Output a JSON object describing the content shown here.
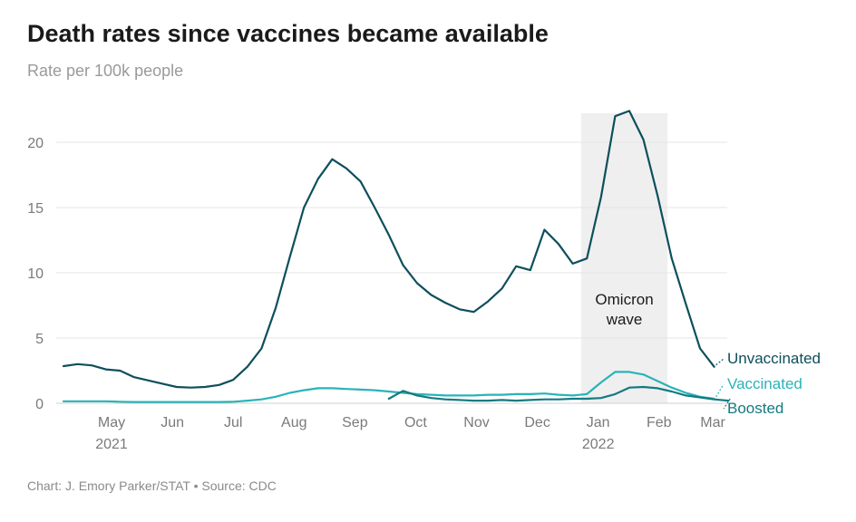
{
  "title": "Death rates since vaccines became available",
  "subtitle": "Rate per 100k people",
  "source": "Chart: J. Emory Parker/STAT • Source: CDC",
  "chart_data": {
    "type": "line",
    "title": "Death rates since vaccines became available",
    "subtitle": "Rate per 100k people",
    "ylim": [
      0,
      22.5
    ],
    "y_ticks": [
      0,
      5,
      10,
      15,
      20
    ],
    "grid": true,
    "x_ticks": [
      {
        "week": 3.4,
        "label": "May",
        "year": "2021"
      },
      {
        "week": 7.7,
        "label": "Jun",
        "year": ""
      },
      {
        "week": 12.0,
        "label": "Jul",
        "year": ""
      },
      {
        "week": 16.3,
        "label": "Aug",
        "year": ""
      },
      {
        "week": 20.6,
        "label": "Sep",
        "year": ""
      },
      {
        "week": 24.9,
        "label": "Oct",
        "year": ""
      },
      {
        "week": 29.2,
        "label": "Nov",
        "year": ""
      },
      {
        "week": 33.5,
        "label": "Dec",
        "year": ""
      },
      {
        "week": 37.8,
        "label": "Jan",
        "year": "2022"
      },
      {
        "week": 42.1,
        "label": "Feb",
        "year": ""
      },
      {
        "week": 45.9,
        "label": "Mar",
        "year": ""
      }
    ],
    "shaded_region": {
      "from_week": 36.6,
      "to_week": 42.7,
      "label_line1": "Omicron",
      "label_line2": "wave"
    },
    "series": [
      {
        "name": "Unvaccinated",
        "color": "#0d4f5c",
        "start_week": 0,
        "values": [
          2.85,
          3.0,
          2.9,
          2.6,
          2.5,
          2.0,
          1.75,
          1.5,
          1.25,
          1.2,
          1.25,
          1.4,
          1.8,
          2.8,
          4.2,
          7.3,
          11.2,
          15.0,
          17.2,
          18.7,
          18.0,
          17.0,
          15.0,
          12.9,
          10.6,
          9.2,
          8.3,
          7.7,
          7.2,
          7.0,
          7.8,
          8.8,
          10.5,
          10.2,
          13.3,
          12.2,
          10.7,
          11.1,
          15.8,
          22.0,
          22.4,
          20.2,
          15.9,
          11.1,
          7.6,
          4.2,
          2.8
        ]
      },
      {
        "name": "Vaccinated",
        "color": "#2ab3b8",
        "start_week": 0,
        "values": [
          0.15,
          0.15,
          0.15,
          0.15,
          0.12,
          0.1,
          0.1,
          0.1,
          0.1,
          0.1,
          0.1,
          0.1,
          0.12,
          0.2,
          0.3,
          0.5,
          0.8,
          1.0,
          1.15,
          1.15,
          1.1,
          1.05,
          1.0,
          0.9,
          0.8,
          0.7,
          0.65,
          0.6,
          0.6,
          0.6,
          0.65,
          0.65,
          0.7,
          0.7,
          0.75,
          0.65,
          0.6,
          0.7,
          1.6,
          2.4,
          2.4,
          2.2,
          1.7,
          1.2,
          0.8,
          0.5,
          0.35
        ]
      },
      {
        "name": "Boosted",
        "color": "#147a80",
        "start_week": 23,
        "values": [
          0.35,
          0.95,
          0.6,
          0.4,
          0.3,
          0.25,
          0.2,
          0.2,
          0.25,
          0.2,
          0.25,
          0.3,
          0.3,
          0.35,
          0.35,
          0.4,
          0.7,
          1.2,
          1.25,
          1.15,
          0.9,
          0.6,
          0.45,
          0.3,
          0.2
        ]
      }
    ]
  }
}
